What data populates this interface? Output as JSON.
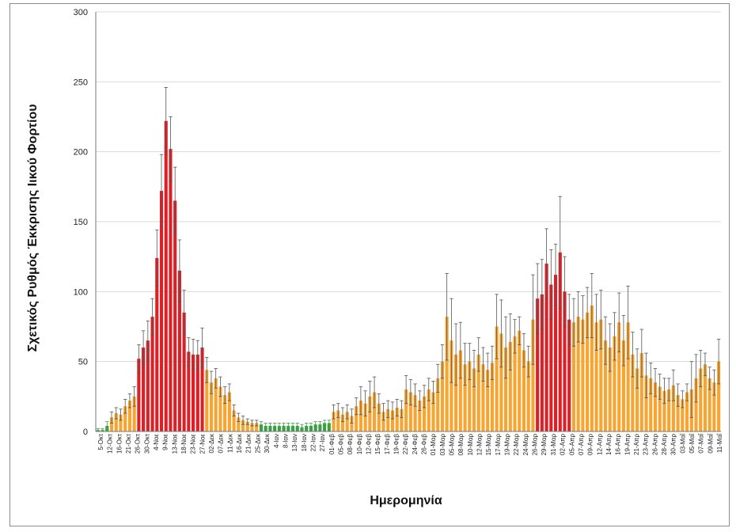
{
  "chart_data": {
    "type": "bar",
    "title": "",
    "xlabel": "Ημερομηνία",
    "ylabel": "Σχετικός Ρυθμός Έκκρισης Ιικού Φορτίου",
    "ylim": [
      0,
      300
    ],
    "y_ticks": [
      0,
      50,
      100,
      150,
      200,
      250,
      300
    ],
    "grid": "horizontal",
    "error_bars": true,
    "colors": {
      "red": "#dd1f26",
      "orange": "#f7a431",
      "green": "#3aa043"
    },
    "x_tick_labels": [
      "5-Οκτ",
      "12-Οκτ",
      "16-Οκτ",
      "21-Οκτ",
      "26-Οκτ",
      "30-Οκτ",
      "4-Νοε",
      "9-Νοε",
      "13-Νοε",
      "18-Νοε",
      "23-Νοε",
      "27-Νοε",
      "02-Δεκ",
      "07-Δεκ",
      "11-Δεκ",
      "16-Δεκ",
      "21-Δεκ",
      "25-Δεκ",
      "30-Δεκ",
      "4-Ιαν",
      "8-Ιαν",
      "13-Ιαν",
      "18-Ιαν",
      "22-Ιαν",
      "27-Ιαν",
      "01-Φεβ",
      "05-Φεβ",
      "08-Φεβ",
      "10-Φεβ",
      "12-Φεβ",
      "15-Φεβ",
      "17-Φεβ",
      "19-Φεβ",
      "22-Φεβ",
      "24-Φεβ",
      "26-Φεβ",
      "01-Μαρ",
      "03-Μαρ",
      "05-Μαρ",
      "08-Μαρ",
      "10-Μαρ",
      "12-Μαρ",
      "15-Μαρ",
      "17-Μαρ",
      "19-Μαρ",
      "22-Μαρ",
      "24-Μαρ",
      "26-Μαρ",
      "29-Μαρ",
      "31-Μαρ",
      "02-Απρ",
      "05-Απρ",
      "07-Απρ",
      "09-Απρ",
      "12-Απρ",
      "14-Απρ",
      "16-Απρ",
      "19-Απρ",
      "21-Απρ",
      "23-Απρ",
      "26-Απρ",
      "28-Απρ",
      "30-Απρ",
      "03-Μαΐ",
      "05-Μαΐ",
      "07-Μαΐ",
      "09-Μαΐ",
      "11-Μαΐ"
    ],
    "values": [
      1,
      1,
      4,
      10,
      13,
      12,
      18,
      22,
      25,
      52,
      60,
      65,
      82,
      124,
      172,
      222,
      202,
      165,
      115,
      85,
      57,
      55,
      55,
      60,
      44,
      35,
      38,
      32,
      26,
      28,
      15,
      10,
      8,
      7,
      6,
      6,
      5,
      4,
      4,
      4,
      4,
      4,
      4,
      4,
      4,
      3,
      4,
      4,
      5,
      5,
      6,
      6,
      14,
      15,
      12,
      14,
      11,
      18,
      22,
      20,
      25,
      28,
      20,
      14,
      16,
      15,
      17,
      16,
      30,
      28,
      26,
      22,
      25,
      30,
      28,
      38,
      50,
      82,
      65,
      55,
      58,
      48,
      50,
      45,
      55,
      48,
      44,
      49,
      75,
      70,
      60,
      64,
      68,
      72,
      58,
      50,
      80,
      95,
      98,
      120,
      105,
      112,
      128,
      100,
      80,
      78,
      82,
      80,
      85,
      90,
      78,
      80,
      65,
      60,
      68,
      78,
      65,
      78,
      55,
      45,
      56,
      40,
      38,
      35,
      32,
      29,
      30,
      33,
      26,
      23,
      28,
      30,
      38,
      45,
      48,
      38,
      35,
      50
    ],
    "errors": [
      1,
      1,
      3,
      4,
      4,
      4,
      5,
      5,
      7,
      10,
      12,
      14,
      13,
      20,
      26,
      24,
      23,
      24,
      22,
      16,
      10,
      11,
      10,
      14,
      9,
      8,
      7,
      7,
      6,
      6,
      4,
      3,
      3,
      2,
      2,
      2,
      2,
      2,
      2,
      2,
      2,
      2,
      2,
      2,
      2,
      2,
      2,
      2,
      2,
      2,
      2,
      2,
      5,
      5,
      5,
      5,
      5,
      6,
      10,
      9,
      11,
      11,
      7,
      6,
      6,
      6,
      6,
      6,
      10,
      9,
      8,
      7,
      8,
      8,
      8,
      10,
      12,
      31,
      30,
      22,
      20,
      15,
      13,
      13,
      12,
      12,
      12,
      12,
      23,
      24,
      22,
      20,
      12,
      10,
      12,
      11,
      32,
      25,
      25,
      25,
      25,
      22,
      40,
      25,
      18,
      17,
      18,
      17,
      18,
      23,
      20,
      21,
      17,
      17,
      17,
      21,
      18,
      26,
      16,
      14,
      17,
      16,
      11,
      10,
      9,
      9,
      8,
      11,
      8,
      6,
      6,
      20,
      17,
      13,
      8,
      8,
      9,
      16
    ],
    "bar_colors": [
      "green",
      "green",
      "green",
      "orange",
      "orange",
      "orange",
      "orange",
      "orange",
      "orange",
      "red",
      "red",
      "red",
      "red",
      "red",
      "red",
      "red",
      "red",
      "red",
      "red",
      "red",
      "red",
      "red",
      "red",
      "red",
      "orange",
      "orange",
      "orange",
      "orange",
      "orange",
      "orange",
      "orange",
      "orange",
      "orange",
      "orange",
      "orange",
      "orange",
      "green",
      "green",
      "green",
      "green",
      "green",
      "green",
      "green",
      "green",
      "green",
      "green",
      "green",
      "green",
      "green",
      "green",
      "green",
      "green",
      "orange",
      "orange",
      "orange",
      "orange",
      "orange",
      "orange",
      "orange",
      "orange",
      "orange",
      "orange",
      "orange",
      "orange",
      "orange",
      "orange",
      "orange",
      "orange",
      "orange",
      "orange",
      "orange",
      "orange",
      "orange",
      "orange",
      "orange",
      "orange",
      "orange",
      "orange",
      "orange",
      "orange",
      "orange",
      "orange",
      "orange",
      "orange",
      "orange",
      "orange",
      "orange",
      "orange",
      "orange",
      "orange",
      "orange",
      "orange",
      "orange",
      "orange",
      "orange",
      "orange",
      "orange",
      "red",
      "red",
      "red",
      "red",
      "red",
      "red",
      "red",
      "red",
      "orange",
      "orange",
      "orange",
      "orange",
      "orange",
      "orange",
      "orange",
      "orange",
      "orange",
      "orange",
      "orange",
      "orange",
      "orange",
      "orange",
      "orange",
      "orange",
      "orange",
      "orange",
      "orange",
      "orange",
      "orange",
      "orange",
      "orange",
      "orange",
      "orange",
      "orange",
      "orange",
      "orange",
      "orange",
      "orange",
      "orange",
      "orange",
      "orange",
      "orange",
      "orange"
    ]
  }
}
